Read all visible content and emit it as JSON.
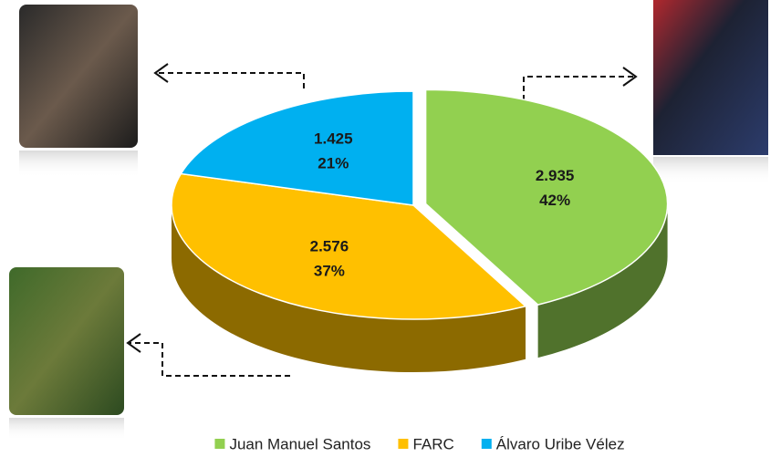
{
  "chart_data": {
    "type": "pie3d",
    "categories": [
      "Juan Manuel Santos",
      "FARC",
      "Álvaro Uribe Vélez"
    ],
    "values": [
      2935,
      2576,
      1425
    ],
    "value_labels": [
      "2.935",
      "2.576",
      "1.425"
    ],
    "percentages": [
      42,
      37,
      21
    ],
    "percentage_labels": [
      "42%",
      "37%",
      "21%"
    ],
    "colors": [
      "#92d050",
      "#ffc000",
      "#00b0f0"
    ],
    "exploded": [
      true,
      false,
      false
    ],
    "legend": "bottom"
  }
}
